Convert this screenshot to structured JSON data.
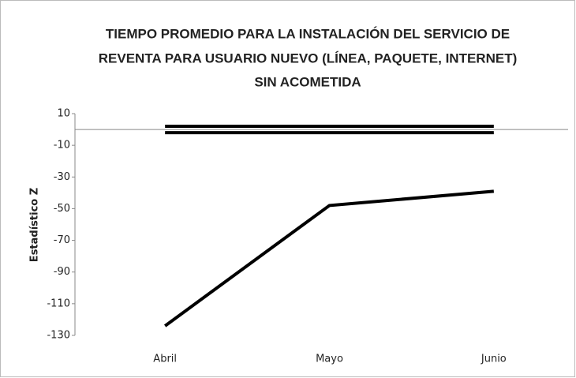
{
  "chart_data": {
    "type": "line",
    "title": [
      "TIEMPO PROMEDIO PARA LA INSTALACIÓN DEL SERVICIO DE",
      "REVENTA PARA USUARIO NUEVO (LÍNEA, PAQUETE, INTERNET)",
      "SIN ACOMETIDA"
    ],
    "y_label": "Estadístico Z",
    "categories": [
      "Abril",
      "Mayo",
      "Junio"
    ],
    "series": [
      {
        "color": "#000000",
        "values": [
          2,
          2,
          2
        ]
      },
      {
        "color": "#000000",
        "values": [
          -2,
          -2,
          -2
        ]
      },
      {
        "color": "#000000",
        "values": [
          -124,
          -48,
          -39
        ]
      }
    ],
    "ylim": [
      -130,
      10
    ],
    "yticks": [
      10,
      -10,
      -30,
      -50,
      -70,
      -90,
      -110,
      -130
    ]
  }
}
